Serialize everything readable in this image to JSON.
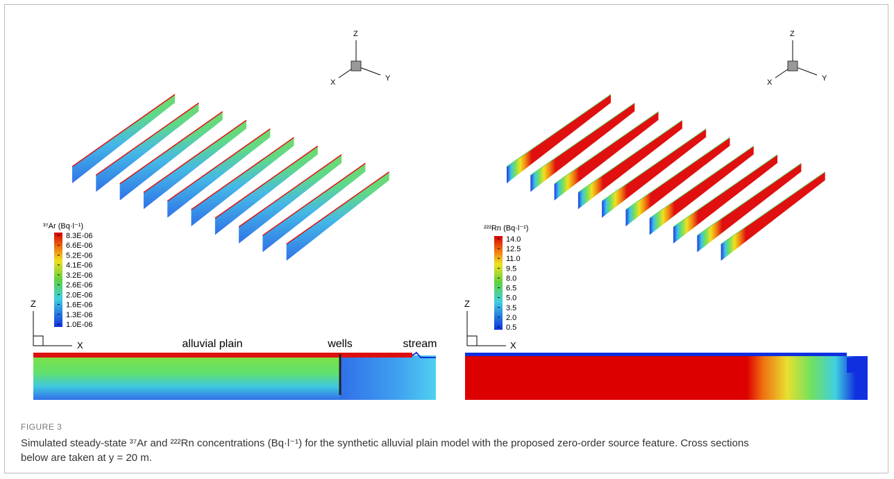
{
  "figure": {
    "label": "FIGURE 3",
    "caption": "Simulated steady-state ³⁷Ar and ²²²Rn concentrations (Bq·l⁻¹) for the synthetic alluvial plain model with the proposed zero-order source feature. Cross sections below are taken at y = 20 m.",
    "left_panel": {
      "triad": {
        "z": "Z",
        "x": "X",
        "y": "Y"
      },
      "colorbar_title": "³⁷Ar (Bq·l⁻¹)",
      "colorbar_ticks": [
        "8.3E-06",
        "6.6E-06",
        "5.2E-06",
        "4.1E-06",
        "3.2E-06",
        "2.6E-06",
        "2.0E-06",
        "1.6E-06",
        "1.3E-06",
        "1.0E-06"
      ],
      "section_axes": {
        "z": "Z",
        "x": "X"
      },
      "section_labels": [
        "alluvial plain",
        "wells",
        "stream"
      ]
    },
    "right_panel": {
      "triad": {
        "z": "Z",
        "x": "X",
        "y": "Y"
      },
      "colorbar_title": "²²²Rn (Bq·l⁻¹)",
      "colorbar_ticks": [
        "14.0",
        "12.5",
        "11.0",
        "9.5",
        "8.0",
        "6.5",
        "5.0",
        "3.5",
        "2.0",
        "0.5"
      ],
      "section_axes": {
        "z": "Z",
        "x": "X"
      }
    }
  }
}
